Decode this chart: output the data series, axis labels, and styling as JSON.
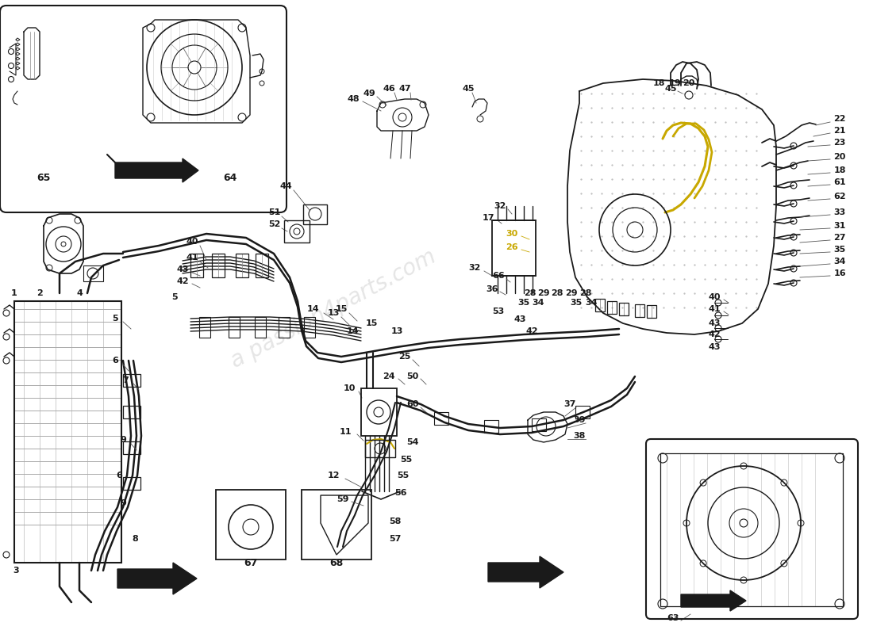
{
  "bg_color": "#ffffff",
  "line_color": "#1a1a1a",
  "highlight_color": "#c8a800",
  "watermark_color": "#cccccc",
  "fig_w": 11.0,
  "fig_h": 8.0,
  "dpi": 100,
  "xlim": [
    0,
    1100
  ],
  "ylim": [
    0,
    800
  ]
}
